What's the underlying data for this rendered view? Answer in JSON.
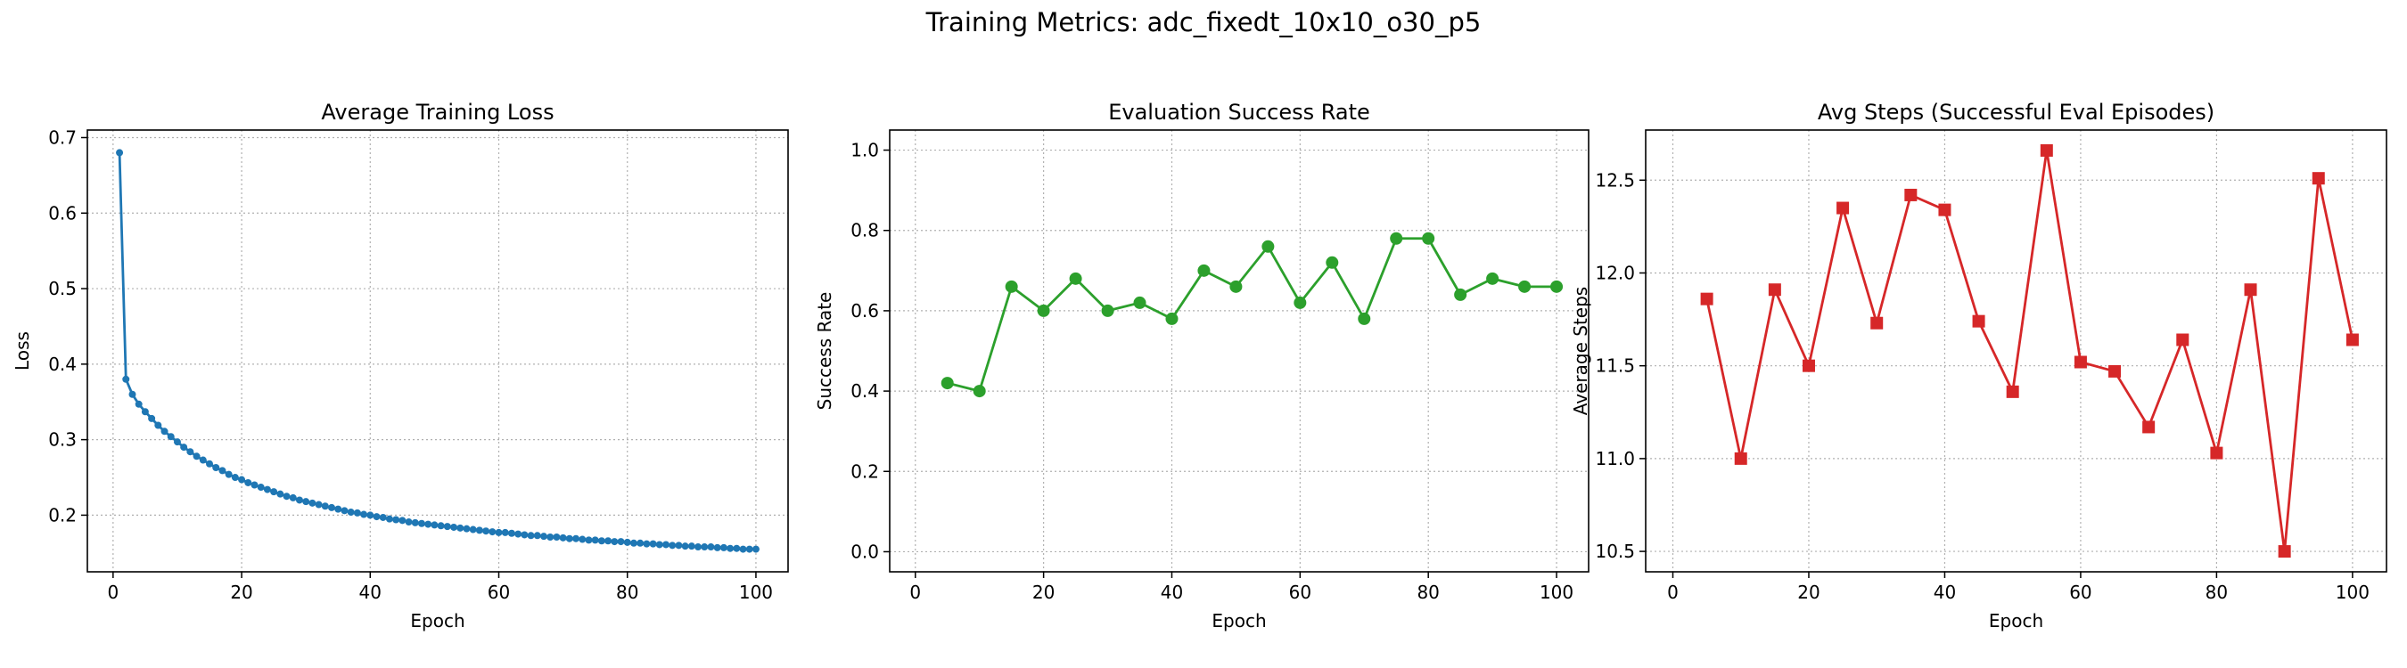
{
  "suptitle": "Training Metrics: adc_fixedt_10x10_o30_p5",
  "chart_data": [
    {
      "type": "line",
      "title": "Average Training Loss",
      "xlabel": "Epoch",
      "ylabel": "Loss",
      "xlim": [
        -4,
        105
      ],
      "ylim": [
        0.125,
        0.71
      ],
      "xticks": [
        0,
        20,
        40,
        60,
        80,
        100
      ],
      "yticks": [
        0.2,
        0.3,
        0.4,
        0.5,
        0.6,
        0.7
      ],
      "ytick_labels": [
        "0.2",
        "0.3",
        "0.4",
        "0.5",
        "0.6",
        "0.7"
      ],
      "grid": true,
      "color": "#1f77b4",
      "marker": "small-circle",
      "series": [
        {
          "x": [
            1,
            2,
            3,
            4,
            5,
            6,
            7,
            8,
            9,
            10,
            11,
            12,
            13,
            14,
            15,
            16,
            17,
            18,
            19,
            20,
            21,
            22,
            23,
            24,
            25,
            26,
            27,
            28,
            29,
            30,
            31,
            32,
            33,
            34,
            35,
            36,
            37,
            38,
            39,
            40,
            41,
            42,
            43,
            44,
            45,
            46,
            47,
            48,
            49,
            50,
            51,
            52,
            53,
            54,
            55,
            56,
            57,
            58,
            59,
            60,
            61,
            62,
            63,
            64,
            65,
            66,
            67,
            68,
            69,
            70,
            71,
            72,
            73,
            74,
            75,
            76,
            77,
            78,
            79,
            80,
            81,
            82,
            83,
            84,
            85,
            86,
            87,
            88,
            89,
            90,
            91,
            92,
            93,
            94,
            95,
            96,
            97,
            98,
            99,
            100
          ],
          "y": [
            0.68,
            0.38,
            0.36,
            0.347,
            0.337,
            0.328,
            0.319,
            0.311,
            0.304,
            0.297,
            0.29,
            0.284,
            0.278,
            0.273,
            0.268,
            0.263,
            0.259,
            0.254,
            0.25,
            0.247,
            0.243,
            0.24,
            0.237,
            0.234,
            0.231,
            0.228,
            0.225,
            0.223,
            0.22,
            0.218,
            0.216,
            0.214,
            0.212,
            0.21,
            0.208,
            0.206,
            0.204,
            0.203,
            0.201,
            0.2,
            0.198,
            0.197,
            0.195,
            0.194,
            0.193,
            0.191,
            0.19,
            0.189,
            0.188,
            0.187,
            0.186,
            0.185,
            0.184,
            0.183,
            0.182,
            0.181,
            0.18,
            0.179,
            0.178,
            0.177,
            0.177,
            0.176,
            0.175,
            0.174,
            0.173,
            0.173,
            0.172,
            0.171,
            0.171,
            0.17,
            0.169,
            0.169,
            0.168,
            0.167,
            0.167,
            0.166,
            0.166,
            0.165,
            0.165,
            0.164,
            0.163,
            0.163,
            0.162,
            0.162,
            0.161,
            0.161,
            0.16,
            0.16,
            0.159,
            0.159,
            0.158,
            0.158,
            0.158,
            0.157,
            0.157,
            0.156,
            0.156,
            0.155,
            0.155,
            0.155
          ]
        }
      ]
    },
    {
      "type": "line",
      "title": "Evaluation Success Rate",
      "xlabel": "Epoch",
      "ylabel": "Success Rate",
      "xlim": [
        -4,
        105
      ],
      "ylim": [
        -0.05,
        1.05
      ],
      "xticks": [
        0,
        20,
        40,
        60,
        80,
        100
      ],
      "yticks": [
        0,
        0.2,
        0.4,
        0.6,
        0.8,
        1.0
      ],
      "ytick_labels": [
        "0.0",
        "0.2",
        "0.4",
        "0.6",
        "0.8",
        "1.0"
      ],
      "grid": true,
      "color": "#2ca02c",
      "marker": "circle",
      "series": [
        {
          "x": [
            5,
            10,
            15,
            20,
            25,
            30,
            35,
            40,
            45,
            50,
            55,
            60,
            65,
            70,
            75,
            80,
            85,
            90,
            95,
            100
          ],
          "y": [
            0.42,
            0.4,
            0.66,
            0.6,
            0.68,
            0.6,
            0.62,
            0.58,
            0.7,
            0.66,
            0.76,
            0.62,
            0.72,
            0.58,
            0.78,
            0.78,
            0.64,
            0.68,
            0.66,
            0.66
          ]
        }
      ]
    },
    {
      "type": "line",
      "title": "Avg Steps (Successful Eval Episodes)",
      "xlabel": "Epoch",
      "ylabel": "Average Steps",
      "xlim": [
        -4,
        105
      ],
      "ylim": [
        10.39,
        12.77
      ],
      "xticks": [
        0,
        20,
        40,
        60,
        80,
        100
      ],
      "yticks": [
        10.5,
        11.0,
        11.5,
        12.0,
        12.5
      ],
      "ytick_labels": [
        "10.5",
        "11.0",
        "11.5",
        "12.0",
        "12.5"
      ],
      "grid": true,
      "color": "#d62728",
      "marker": "square",
      "series": [
        {
          "x": [
            5,
            10,
            15,
            20,
            25,
            30,
            35,
            40,
            45,
            50,
            55,
            60,
            65,
            70,
            75,
            80,
            85,
            90,
            95,
            100
          ],
          "y": [
            11.86,
            11.0,
            11.91,
            11.5,
            12.35,
            11.73,
            12.42,
            12.34,
            11.74,
            11.36,
            12.66,
            11.52,
            11.47,
            11.17,
            11.64,
            11.03,
            11.91,
            10.5,
            12.51,
            11.64
          ]
        }
      ]
    }
  ]
}
